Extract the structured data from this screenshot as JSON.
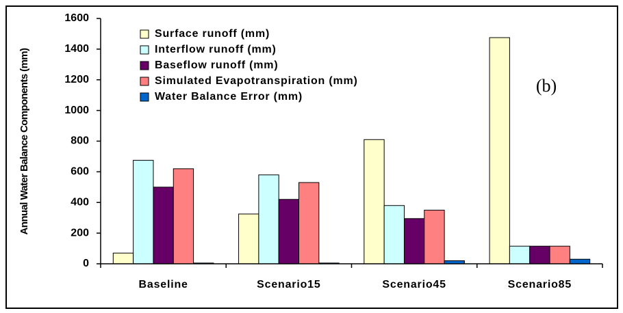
{
  "chart_data": {
    "type": "bar",
    "y_label": "Annual Water Balance Components (mm)",
    "annotation": "(b)",
    "categories": [
      "Baseline",
      "Scenario15",
      "Scenario45",
      "Scenario85"
    ],
    "series": [
      {
        "name": "Surface runoff (mm)",
        "color": "#ffffcc",
        "values": [
          70,
          325,
          810,
          1475
        ]
      },
      {
        "name": "Interflow runoff (mm)",
        "color": "#ccffff",
        "values": [
          675,
          580,
          380,
          115
        ]
      },
      {
        "name": "Baseflow runoff (mm)",
        "color": "#660066",
        "values": [
          500,
          420,
          295,
          115
        ]
      },
      {
        "name": "Simulated Evapotranspiration (mm)",
        "color": "#ff8080",
        "values": [
          620,
          530,
          350,
          115
        ]
      },
      {
        "name": "Water Balance Error (mm)",
        "color": "#0066cc",
        "values": [
          5,
          5,
          20,
          30
        ]
      }
    ],
    "ylim": [
      0,
      1600
    ],
    "yticks": [
      0,
      200,
      400,
      600,
      800,
      1000,
      1200,
      1400,
      1600
    ],
    "grid": false,
    "legend": "top-left"
  }
}
